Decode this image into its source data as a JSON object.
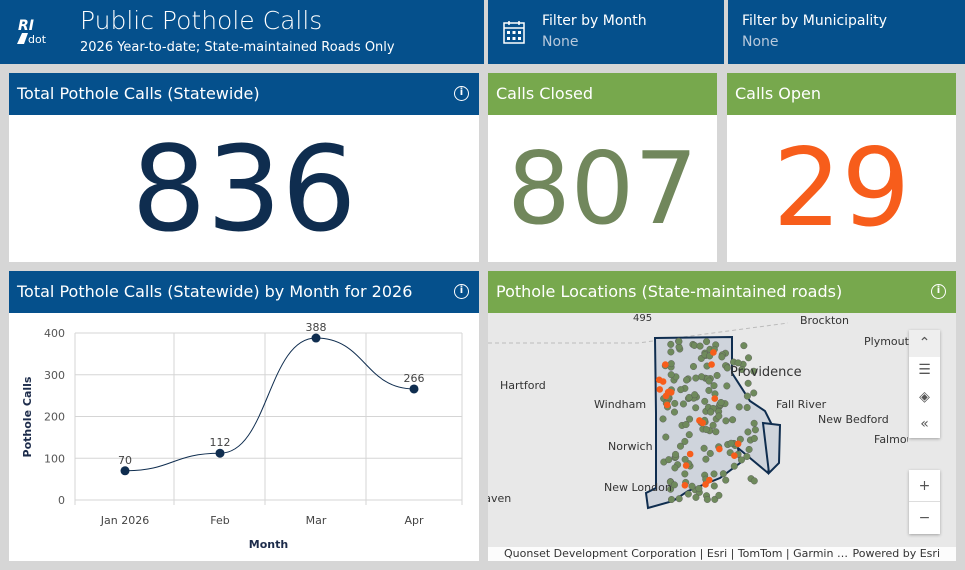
{
  "header": {
    "logo_text": "RIDOT",
    "title": "Public Pothole Calls",
    "subtitle": "2026 Year-to-date; State-maintained Roads Only"
  },
  "filters": [
    {
      "label": "Filter by Month",
      "value": "None",
      "icon": "calendar-icon"
    },
    {
      "label": "Filter by Municipality",
      "value": "None"
    }
  ],
  "kpis": {
    "total": {
      "title": "Total Pothole Calls (Statewide)",
      "value": "836",
      "color": "#0f2d4f"
    },
    "closed": {
      "title": "Calls Closed",
      "value": "807",
      "color": "#71875c"
    },
    "open": {
      "title": "Calls Open",
      "value": "29",
      "color": "#f75d1b"
    }
  },
  "chart_panel": {
    "title": "Total Pothole Calls (Statewide) by Month for 2026"
  },
  "chart_data": {
    "type": "line",
    "categories": [
      "Jan 2026",
      "Feb",
      "Mar",
      "Apr"
    ],
    "values": [
      70,
      112,
      388,
      266
    ],
    "xlabel": "Month",
    "ylabel": "Pothole Calls",
    "ylim": [
      0,
      400
    ],
    "yticks": [
      0,
      100,
      200,
      300,
      400
    ],
    "grid": true,
    "smooth": true,
    "color": "#0f2d4f"
  },
  "map": {
    "title": "Pothole Locations (State-maintained roads)",
    "places": [
      "Brockton",
      "Plymouth",
      "Providence",
      "Hartford",
      "Windham",
      "Fall River",
      "New Bedford",
      "Falmouth",
      "Norwich",
      "New London",
      "Haven"
    ],
    "shield": "495",
    "attribution": "Quonset Development Corporation | Esri | TomTom | Garmin …",
    "powered": "Powered by Esri",
    "closed_color": "#6f8a5c",
    "open_color": "#f75d1b"
  }
}
